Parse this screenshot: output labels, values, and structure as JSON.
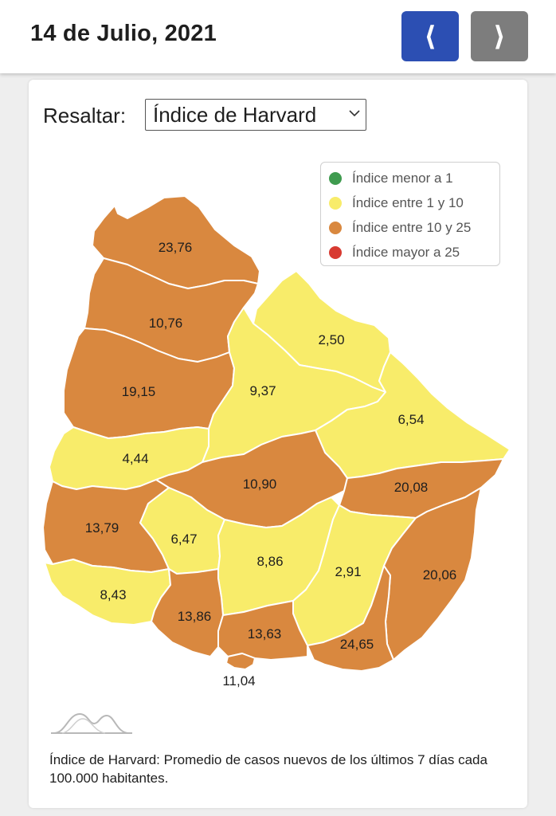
{
  "header": {
    "date_title": "14 de Julio, 2021",
    "prev_label": "⟨",
    "next_label": "⟩",
    "prev_color": "#2c4fb3",
    "next_color": "#7d7d7d"
  },
  "filter": {
    "label": "Resaltar:",
    "selected": "Índice de Harvard"
  },
  "legend": [
    {
      "label": "Índice menor a 1",
      "color": "#3f9b4f"
    },
    {
      "label": "Índice entre 1 y 10",
      "color": "#f8ec6a"
    },
    {
      "label": "Índice entre 10 y 25",
      "color": "#d9883f"
    },
    {
      "label": "Índice mayor a 25",
      "color": "#d83a31"
    }
  ],
  "regions": [
    {
      "value": "23,76",
      "category": "orange"
    },
    {
      "value": "10,76",
      "category": "orange"
    },
    {
      "value": "19,15",
      "category": "orange"
    },
    {
      "value": "2,50",
      "category": "yellow"
    },
    {
      "value": "9,37",
      "category": "yellow"
    },
    {
      "value": "6,54",
      "category": "yellow"
    },
    {
      "value": "4,44",
      "category": "yellow"
    },
    {
      "value": "10,90",
      "category": "orange"
    },
    {
      "value": "20,08",
      "category": "orange"
    },
    {
      "value": "13,79",
      "category": "orange"
    },
    {
      "value": "6,47",
      "category": "yellow"
    },
    {
      "value": "8,86",
      "category": "yellow"
    },
    {
      "value": "2,91",
      "category": "yellow"
    },
    {
      "value": "20,06",
      "category": "orange"
    },
    {
      "value": "8,43",
      "category": "yellow"
    },
    {
      "value": "13,86",
      "category": "orange"
    },
    {
      "value": "13,63",
      "category": "orange"
    },
    {
      "value": "24,65",
      "category": "orange"
    },
    {
      "value": "11,04",
      "category": "orange"
    }
  ],
  "colors": {
    "orange": "#d9883f",
    "yellow": "#f8ec6a"
  },
  "footnote": "Índice de Harvard: Promedio de casos nuevos de los últimos 7 días cada 100.000 habitantes."
}
